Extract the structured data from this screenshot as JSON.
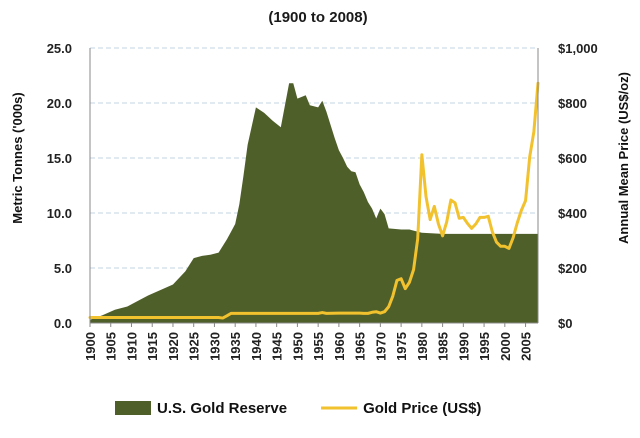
{
  "chart_data": {
    "type": "area+line",
    "title": "",
    "subtitle": "(1900 to 2008)",
    "xlabel": "",
    "ylabel_left": "Metric Tonnes ('000s)",
    "ylabel_right": "Annual Mean Price (US$/oz)",
    "xlim": [
      1900,
      2008
    ],
    "ylim_left": [
      0,
      25
    ],
    "ylim_right": [
      0,
      1000
    ],
    "x_ticks": [
      1900,
      1905,
      1910,
      1915,
      1920,
      1925,
      1930,
      1935,
      1940,
      1945,
      1950,
      1955,
      1960,
      1965,
      1970,
      1975,
      1980,
      1985,
      1990,
      1995,
      2000,
      2005
    ],
    "y_left_ticks": [
      "0.0",
      "5.0",
      "10.0",
      "15.0",
      "20.0",
      "25.0"
    ],
    "y_right_ticks": [
      "$0",
      "$200",
      "$400",
      "$600",
      "$800",
      "$1,000"
    ],
    "grid": true,
    "legend_position": "bottom",
    "series": [
      {
        "name": "U.S. Gold Reserve",
        "kind": "area",
        "axis": "left",
        "color": "#4f5f29",
        "x": [
          1900,
          1903,
          1906,
          1909,
          1912,
          1914,
          1917,
          1920,
          1923,
          1925,
          1927,
          1929,
          1931,
          1933,
          1934,
          1935,
          1936,
          1937,
          1938,
          1940,
          1942,
          1944,
          1946,
          1948,
          1949,
          1950,
          1952,
          1953,
          1955,
          1956,
          1957,
          1958,
          1959,
          1960,
          1961,
          1962,
          1963,
          1964,
          1965,
          1966,
          1967,
          1968,
          1969,
          1970,
          1971,
          1972,
          1975,
          1977,
          1978,
          1980,
          1985,
          1990,
          1995,
          2000,
          2005,
          2008
        ],
        "values": [
          0.3,
          0.7,
          1.2,
          1.5,
          2.1,
          2.5,
          3.0,
          3.5,
          4.7,
          5.9,
          6.1,
          6.2,
          6.4,
          7.6,
          8.3,
          9.0,
          10.8,
          13.4,
          16.2,
          19.6,
          19.1,
          18.4,
          17.8,
          21.8,
          21.8,
          20.4,
          20.7,
          19.8,
          19.6,
          20.2,
          19.2,
          18.0,
          16.8,
          15.7,
          15.0,
          14.2,
          13.8,
          13.7,
          12.6,
          11.9,
          11.0,
          10.4,
          9.5,
          10.4,
          9.9,
          8.6,
          8.5,
          8.5,
          8.4,
          8.2,
          8.1,
          8.1,
          8.1,
          8.1,
          8.1,
          8.1
        ]
      },
      {
        "name": "Gold Price (US$)",
        "kind": "line",
        "axis": "right",
        "color": "#f2c12e",
        "x": [
          1900,
          1910,
          1920,
          1925,
          1930,
          1931,
          1932,
          1933,
          1934,
          1936,
          1940,
          1945,
          1950,
          1955,
          1956,
          1957,
          1960,
          1965,
          1966,
          1967,
          1968,
          1969,
          1970,
          1971,
          1972,
          1973,
          1974,
          1975,
          1976,
          1977,
          1978,
          1979,
          1980,
          1981,
          1982,
          1983,
          1984,
          1985,
          1986,
          1987,
          1988,
          1989,
          1990,
          1991,
          1992,
          1993,
          1994,
          1995,
          1996,
          1997,
          1998,
          1999,
          2000,
          2001,
          2002,
          2003,
          2004,
          2005,
          2006,
          2007,
          2008
        ],
        "values": [
          20,
          20,
          20,
          20,
          20,
          20,
          18,
          26,
          35,
          35,
          35,
          35,
          35,
          35,
          38,
          35,
          36,
          36,
          35,
          35,
          39,
          41,
          36,
          41,
          59,
          98,
          155,
          161,
          125,
          148,
          194,
          306,
          612,
          460,
          376,
          424,
          360,
          317,
          368,
          447,
          437,
          381,
          384,
          362,
          344,
          360,
          384,
          384,
          388,
          331,
          294,
          279,
          279,
          271,
          310,
          364,
          410,
          445,
          604,
          695,
          872
        ]
      }
    ]
  }
}
